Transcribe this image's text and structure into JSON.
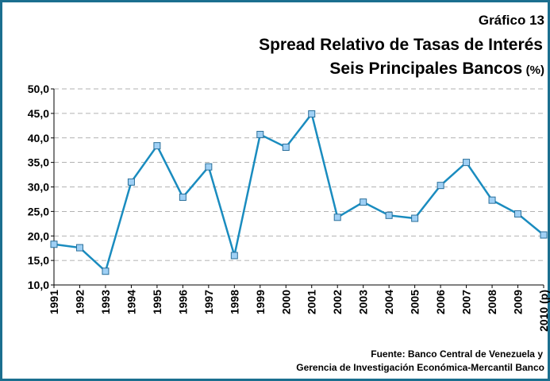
{
  "chart_data": {
    "type": "line",
    "label": "Gráfico 13",
    "title": "Spread Relativo de Tasas de Interés",
    "subtitle": "Seis Principales Bancos",
    "unit": "(%)",
    "categories": [
      "1991",
      "1992",
      "1993",
      "1994",
      "1995",
      "1996",
      "1997",
      "1998",
      "1999",
      "2000",
      "2001",
      "2002",
      "2003",
      "2004",
      "2005",
      "2006",
      "2007",
      "2008",
      "2009",
      "2010 (p)"
    ],
    "values": [
      18.3,
      17.6,
      12.8,
      31.0,
      38.4,
      27.9,
      34.1,
      16.0,
      40.7,
      38.1,
      44.9,
      23.8,
      26.9,
      24.2,
      23.6,
      30.3,
      35.0,
      27.3,
      24.5,
      20.2
    ],
    "color": "#1a8cbf",
    "marker_color": "#9fd0f5",
    "ylim": [
      10,
      50
    ],
    "yticks": [
      {
        "value": 10,
        "label": "10,0"
      },
      {
        "value": 15,
        "label": "15,0"
      },
      {
        "value": 20,
        "label": "20,0"
      },
      {
        "value": 25,
        "label": "25,0"
      },
      {
        "value": 30,
        "label": "30,0"
      },
      {
        "value": 35,
        "label": "35,0"
      },
      {
        "value": 40,
        "label": "40,0"
      },
      {
        "value": 45,
        "label": "45,0"
      },
      {
        "value": 50,
        "label": "50,0"
      }
    ],
    "grid": true,
    "source": [
      "Fuente: Banco Central de Venezuela y",
      "Gerencia de Investigación Económica-Mercantil Banco"
    ]
  }
}
